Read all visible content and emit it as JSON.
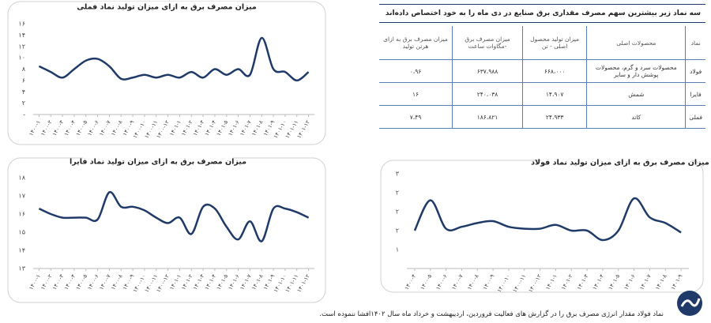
{
  "chart_data": [
    {
      "type": "line",
      "title": "میزان مصرف برق  به ازای میزان تولید نماد فملی",
      "categories": [
        "۱۴۰۰-۱",
        "۱۴۰۰-۲",
        "۱۴۰۰-۳",
        "۱۴۰۰-۴",
        "۱۴۰۰-۵",
        "۱۴۰۰-۶",
        "۱۴۰۰-۷",
        "۱۴۰۰-۸",
        "۱۴۰۰-۹",
        "۱۴۰۰-۱۰",
        "۱۴۰۰-۱۱",
        "۱۴۰۰-۱۲",
        "۱۴۰۱-۱",
        "۱۴۰۱-۲",
        "۱۴۰۱-۳",
        "۱۴۰۱-۴",
        "۱۴۰۱-۵",
        "۱۴۰۱-۶",
        "۱۴۰۱-۷",
        "۱۴۰۱-۸",
        "۱۴۰۱-۹",
        "۱۴۰۱-۱۰",
        "۱۴۰۱-۱۱",
        "۱۴۰۱-۱۲"
      ],
      "values": [
        8.5,
        7.5,
        6.5,
        8,
        9.5,
        9.8,
        8.5,
        6.3,
        6.5,
        7,
        6.5,
        7,
        6.5,
        7.5,
        6.5,
        8,
        7,
        8,
        7,
        13.5,
        8,
        7.5,
        6,
        7.5
      ],
      "color": "#1f3a68",
      "ylim": [
        0,
        16
      ],
      "yticks": [
        {
          "value": 0,
          "label": "-"
        },
        {
          "value": 2,
          "label": "۲"
        },
        {
          "value": 4,
          "label": "۴"
        },
        {
          "value": 6,
          "label": "۶"
        },
        {
          "value": 8,
          "label": "۸"
        },
        {
          "value": 10,
          "label": "۱۰"
        },
        {
          "value": 12,
          "label": "۱۲"
        },
        {
          "value": 14,
          "label": "۱۴"
        },
        {
          "value": 16,
          "label": "۱۶"
        }
      ]
    },
    {
      "type": "line",
      "title": "میزان مصرف برق به ازای میزان تولید نماد فایرا",
      "categories": [
        "۱۴۰۰-۱",
        "۱۴۰۰-۲",
        "۱۴۰۰-۳",
        "۱۴۰۰-۴",
        "۱۴۰۰-۵",
        "۱۴۰۰-۶",
        "۱۴۰۰-۷",
        "۱۴۰۰-۸",
        "۱۴۰۰-۹",
        "۱۴۰۰-۱۰",
        "۱۴۰۰-۱۱",
        "۱۴۰۰-۱۲",
        "۱۴۰۱-۱",
        "۱۴۰۱-۲",
        "۱۴۰۱-۳",
        "۱۴۰۱-۴",
        "۱۴۰۱-۵",
        "۱۴۰۱-۶",
        "۱۴۰۱-۷",
        "۱۴۰۱-۸",
        "۱۴۰۱-۹",
        "۱۴۰۱-۱۰",
        "۱۴۰۱-۱۱",
        "۱۴۰۱-۱۲"
      ],
      "values": [
        16.3,
        16.0,
        15.8,
        15.8,
        15.8,
        15.7,
        17.2,
        16.4,
        16.4,
        16.2,
        15.8,
        15.5,
        15.8,
        14.9,
        16.4,
        16.3,
        15.3,
        14.6,
        15.6,
        14.5,
        16.3,
        16.3,
        16.1,
        15.8
      ],
      "color": "#1f3a68",
      "ylim": [
        13,
        18
      ],
      "yticks": [
        {
          "value": 13,
          "label": "۱۳"
        },
        {
          "value": 14,
          "label": "۱۴"
        },
        {
          "value": 15,
          "label": "۱۵"
        },
        {
          "value": 16,
          "label": "۱۶"
        },
        {
          "value": 17,
          "label": "۱۷"
        },
        {
          "value": 18,
          "label": "۱۸"
        }
      ]
    },
    {
      "type": "line",
      "title": "میزان مصرف برق به ازای میزان تولید نماد فولاد",
      "categories": [
        "۱۴۰۰-۴",
        "۱۴۰۰-۵",
        "۱۴۰۰-۶",
        "۱۴۰۰-۷",
        "۱۴۰۰-۸",
        "۱۴۰۰-۹",
        "۱۴۰۰-۱۰",
        "۱۴۰۰-۱۱",
        "۱۴۰۰-۱۲",
        "۱۴۰۱-۱",
        "۱۴۰۱-۲",
        "۱۴۰۱-۳",
        "۱۴۰۱-۴",
        "۱۴۰۱-۵",
        "۱۴۰۱-۶",
        "۱۴۰۱-۷",
        "۱۴۰۱-۸",
        "۱۴۰۱-۹"
      ],
      "values": [
        1.5,
        2.3,
        1.55,
        1.6,
        1.7,
        1.75,
        1.6,
        1.55,
        1.55,
        1.65,
        1.5,
        1.5,
        1.25,
        1.5,
        2.35,
        1.85,
        1.7,
        1.45
      ],
      "color": "#1f3a68",
      "ylim": [
        0.5,
        3
      ],
      "yticks": [
        {
          "value": 1,
          "label": "۱"
        },
        {
          "value": 1.5,
          "label": "۲"
        },
        {
          "value": 2,
          "label": "۲"
        },
        {
          "value": 2.5,
          "label": "۲"
        },
        {
          "value": 3,
          "label": "۳"
        }
      ]
    }
  ],
  "table": {
    "title": "سه نماد زیر بیشترین سهم مصرف مقداری برق صنایع در  دی ماه را به خود اختصاص داده‌اند",
    "header": [
      "نماد",
      "محصولات اصلی",
      "میزان تولید محصول اصلی - تن",
      "میزان مصرف برق -مگاوات ساعت",
      "میزان مصرف برق به ازای هرتن تولید"
    ],
    "rows": [
      [
        "فولاد",
        "محصولات سرد و گرم، محصولات پوشش دار و سایر",
        "۶۶۸،۰۰۰",
        "۶۳۷،۹۸۸",
        "۰،۹۶"
      ],
      [
        "فایرا",
        "شمش",
        "۱۴،۹۰۷",
        "۲۴۰،۰۳۸",
        "۱۶"
      ],
      [
        "فملی",
        "کاتد",
        "۲۴،۹۳۳",
        "۱۸۶،۸۲۱",
        "۷،۴۹"
      ]
    ]
  },
  "footer": {
    "note": "نماد فولاد مقدار انرژی مصرف برق را در گزارش های فعالیت فروردین، اردیبهشت و خرداد ماه سال ۱۴۰۲افشا ننموده است."
  }
}
